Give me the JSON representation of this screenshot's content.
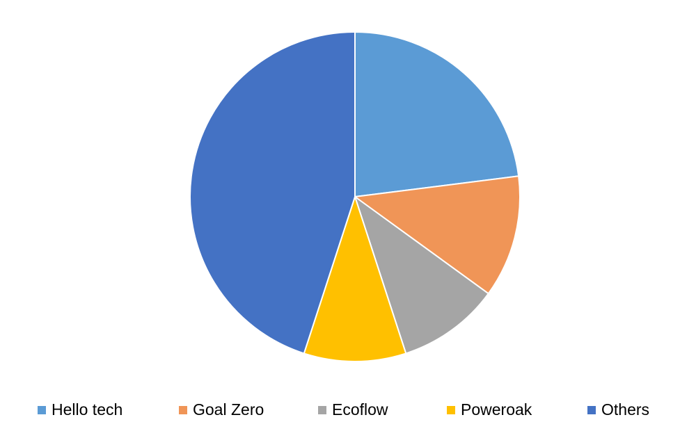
{
  "chart_data": {
    "type": "pie",
    "categories": [
      "Hello tech",
      "Goal Zero",
      "Ecoflow",
      "Poweroak",
      "Others"
    ],
    "values": [
      23,
      12,
      10,
      10,
      45
    ],
    "colors": [
      "#5b9bd5",
      "#f09557",
      "#a5a5a5",
      "#ffc000",
      "#4472c4"
    ],
    "legend": "bottom"
  }
}
